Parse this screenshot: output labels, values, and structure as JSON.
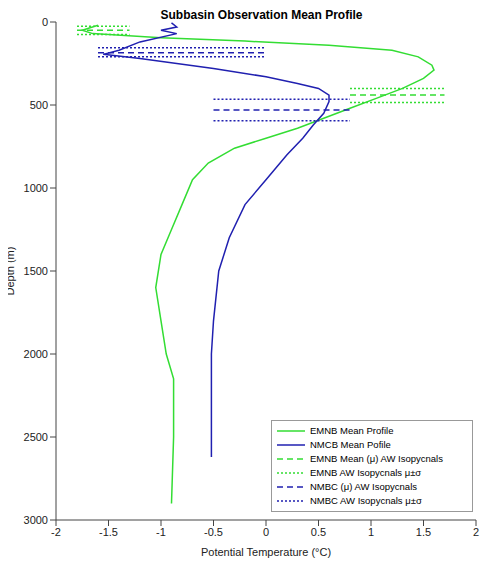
{
  "chart_data": {
    "type": "line",
    "title": "Subbasin Observation Mean Profile",
    "x_label": "Potential Temperature (°C)",
    "y_label": "Depth (m)",
    "xlim": [
      -2,
      2
    ],
    "xticks": [
      -2,
      -1.5,
      -1,
      -0.5,
      0,
      0.5,
      1,
      1.5,
      2
    ],
    "ylim": [
      0,
      3000
    ],
    "yticks": [
      0,
      500,
      1000,
      1500,
      2000,
      2500,
      3000
    ],
    "legend": "lower right",
    "series": [
      {
        "name": "EMNB Mean Profile",
        "color": "#33dd33",
        "line_style": "solid",
        "values": [
          [
            -1.6,
            20
          ],
          [
            -1.75,
            50
          ],
          [
            -1.65,
            70
          ],
          [
            -1.0,
            95
          ],
          [
            -0.2,
            115
          ],
          [
            0.6,
            140
          ],
          [
            1.2,
            170
          ],
          [
            1.45,
            210
          ],
          [
            1.58,
            260
          ],
          [
            1.6,
            290
          ],
          [
            1.5,
            340
          ],
          [
            1.3,
            400
          ],
          [
            1.05,
            460
          ],
          [
            0.8,
            520
          ],
          [
            0.55,
            580
          ],
          [
            0.3,
            640
          ],
          [
            0.0,
            700
          ],
          [
            -0.3,
            760
          ],
          [
            -0.55,
            850
          ],
          [
            -0.7,
            950
          ],
          [
            -0.8,
            1100
          ],
          [
            -0.9,
            1250
          ],
          [
            -1.0,
            1400
          ],
          [
            -1.05,
            1600
          ],
          [
            -1.0,
            1800
          ],
          [
            -0.95,
            2000
          ],
          [
            -0.88,
            2150
          ],
          [
            -0.88,
            2500
          ],
          [
            -0.9,
            2900
          ]
        ]
      },
      {
        "name": "NMCB Mean Pofile",
        "color": "#2020b0",
        "line_style": "solid",
        "values": [
          [
            -0.9,
            5
          ],
          [
            -0.85,
            30
          ],
          [
            -1.0,
            50
          ],
          [
            -0.85,
            70
          ],
          [
            -1.2,
            120
          ],
          [
            -1.4,
            170
          ],
          [
            -1.55,
            195
          ],
          [
            -1.2,
            220
          ],
          [
            -0.5,
            280
          ],
          [
            0.0,
            330
          ],
          [
            0.3,
            370
          ],
          [
            0.5,
            400
          ],
          [
            0.6,
            440
          ],
          [
            0.6,
            480
          ],
          [
            0.55,
            550
          ],
          [
            0.45,
            620
          ],
          [
            0.35,
            700
          ],
          [
            0.2,
            800
          ],
          [
            0.0,
            950
          ],
          [
            -0.2,
            1100
          ],
          [
            -0.35,
            1300
          ],
          [
            -0.45,
            1500
          ],
          [
            -0.5,
            1800
          ],
          [
            -0.52,
            2000
          ],
          [
            -0.52,
            2620
          ]
        ]
      },
      {
        "name": "EMNB Mean (μ) AW Isopycnals",
        "color": "#33dd33",
        "line_style": "dashed",
        "values": [
          [
            -1.8,
            50
          ],
          [
            -1.3,
            50
          ],
          null,
          [
            0.8,
            440
          ],
          [
            1.7,
            440
          ]
        ]
      },
      {
        "name": "EMNB AW Isopycnals μ±σ",
        "color": "#33dd33",
        "line_style": "dotted",
        "values": [
          [
            -1.8,
            25
          ],
          [
            -1.3,
            25
          ],
          null,
          [
            -1.8,
            75
          ],
          [
            -1.3,
            75
          ],
          null,
          [
            0.8,
            400
          ],
          [
            1.7,
            400
          ],
          null,
          [
            0.8,
            485
          ],
          [
            1.7,
            485
          ]
        ]
      },
      {
        "name": "NMBC (μ) AW Isopycnals",
        "color": "#2020b0",
        "line_style": "dashed",
        "values": [
          [
            -1.6,
            185
          ],
          [
            0,
            185
          ],
          null,
          [
            -0.5,
            530
          ],
          [
            0.8,
            530
          ]
        ]
      },
      {
        "name": "NMBC AW Isopycnals μ±σ",
        "color": "#2020b0",
        "line_style": "dotted",
        "values": [
          [
            -1.6,
            155
          ],
          [
            0,
            155
          ],
          null,
          [
            -1.6,
            210
          ],
          [
            0,
            210
          ],
          null,
          [
            -0.5,
            465
          ],
          [
            0.8,
            465
          ],
          null,
          [
            -0.5,
            595
          ],
          [
            0.8,
            595
          ]
        ]
      }
    ]
  }
}
